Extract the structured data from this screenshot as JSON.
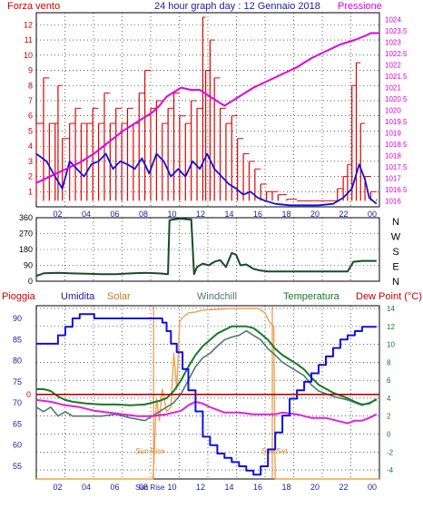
{
  "colors": {
    "wind": "#e00000",
    "gust_line": "#e00000",
    "wind_avg": "#1010e0",
    "pressure": "#e000e0",
    "direction": "#1a4a2a",
    "humidity": "#1010e0",
    "solar": "#f0a050",
    "windchill": "#507a72",
    "temperature": "#157a28",
    "dewpoint": "#e020e0",
    "rain": "#c00000",
    "sun_line": "#e08020",
    "axis_blue": "#2020a0",
    "grid": "#000000"
  },
  "chart_data": [
    {
      "type": "line",
      "title": "24 hour graph day : 12 Gennaio 2018",
      "left_label": "Forza vento",
      "right_label": "Pressione",
      "x_ticks": [
        "02",
        "04",
        "06",
        "08",
        "10",
        "12",
        "14",
        "16",
        "18",
        "20",
        "22",
        "00"
      ],
      "y_left_ticks": [
        "1",
        "2",
        "3",
        "4",
        "5",
        "6",
        "7",
        "8",
        "9",
        "10",
        "11",
        "12"
      ],
      "y_right_ticks": [
        "1016",
        "1016.5",
        "1017",
        "1017.5",
        "1018",
        "1018.5",
        "1019",
        "1019.5",
        "1020",
        "1020.5",
        "1021",
        "1021.5",
        "1022",
        "1022.5",
        "1023",
        "1023.5",
        "1024"
      ],
      "ylim_left": [
        0,
        12.8
      ],
      "ylim_right": [
        1015.75,
        1024.3
      ],
      "xlim": [
        0.5,
        24.2
      ],
      "series": [
        {
          "key": "pressure",
          "x": [
            0.5,
            1.5,
            2.5,
            3.5,
            4.5,
            5.5,
            6.5,
            7.5,
            8.5,
            9.0,
            9.5,
            10.5,
            11.2,
            11.8,
            12.5,
            13.5,
            14.5,
            15.5,
            16.5,
            17.5,
            18.5,
            19.5,
            20.5,
            21.5,
            22.5,
            23.3,
            23.6,
            24.2
          ],
          "y": [
            1016.8,
            1017.1,
            1017.4,
            1017.7,
            1018.1,
            1018.6,
            1019.1,
            1019.5,
            1019.9,
            1020.2,
            1020.6,
            1021.0,
            1020.9,
            1020.9,
            1020.6,
            1020.2,
            1020.6,
            1021.0,
            1021.3,
            1021.6,
            1021.9,
            1022.3,
            1022.6,
            1022.9,
            1023.1,
            1023.3,
            1023.4,
            1023.4
          ]
        },
        {
          "key": "wind_avg",
          "x": [
            0.5,
            1.2,
            1.8,
            2.3,
            2.8,
            3.3,
            3.8,
            4.3,
            4.8,
            5.3,
            5.8,
            6.3,
            6.8,
            7.3,
            7.8,
            8.3,
            8.8,
            9.3,
            9.8,
            10.3,
            10.8,
            11.3,
            11.8,
            12.3,
            12.8,
            13.3,
            13.8,
            14.3,
            14.8,
            15.3,
            15.8,
            16.3,
            17.0,
            18.0,
            19.0,
            20.0,
            21.0,
            21.7,
            22.3,
            22.8,
            23.2,
            23.5,
            24.0
          ],
          "y": [
            3.5,
            3.0,
            2.0,
            1.2,
            3.0,
            2.5,
            2.0,
            2.8,
            3.0,
            3.5,
            2.5,
            3.0,
            2.8,
            2.5,
            3.2,
            2.2,
            3.5,
            3.0,
            2.0,
            2.5,
            2.0,
            3.0,
            2.5,
            3.5,
            2.5,
            2.0,
            1.5,
            1.2,
            0.8,
            1.0,
            0.6,
            0.4,
            0.2,
            0.1,
            0.1,
            0.1,
            0.2,
            0.6,
            1.2,
            2.8,
            1.8,
            0.6,
            0.2
          ]
        },
        {
          "key": "wind",
          "x": [
            0.5,
            1.0,
            1.4,
            1.8,
            2.0,
            2.3,
            2.8,
            3.2,
            3.6,
            4.0,
            4.4,
            4.8,
            5.2,
            5.6,
            6.0,
            6.4,
            6.8,
            7.2,
            7.6,
            8.0,
            8.4,
            8.8,
            9.2,
            9.6,
            10.0,
            10.4,
            10.8,
            11.2,
            11.6,
            12.0,
            12.2,
            12.5,
            12.8,
            13.2,
            13.6,
            14.0,
            14.4,
            14.8,
            15.2,
            15.6,
            16.0,
            16.4,
            16.8,
            17.2,
            17.8,
            18.5,
            19.5,
            20.5,
            21.3,
            21.7,
            22.0,
            22.3,
            22.6,
            22.9,
            23.2,
            23.6,
            24.0
          ],
          "y": [
            5.5,
            8.5,
            5.5,
            5.5,
            8.0,
            4.5,
            5.5,
            6.5,
            5.5,
            5.5,
            6.5,
            5.5,
            7.5,
            5.5,
            6.5,
            5.5,
            6.5,
            5.5,
            7.5,
            9.0,
            6.5,
            7.0,
            5.5,
            6.5,
            7.5,
            6.0,
            5.5,
            7.0,
            6.5,
            12.5,
            9.0,
            11.0,
            8.5,
            6.5,
            5.5,
            6.0,
            4.5,
            3.5,
            3.0,
            2.5,
            1.5,
            1.0,
            1.0,
            0.8,
            0.5,
            0.4,
            0.4,
            0.4,
            1.2,
            2.0,
            2.8,
            8.0,
            9.5,
            5.5,
            2.0,
            1.0,
            0.5
          ]
        }
      ]
    },
    {
      "type": "line",
      "right_label": "N W S E N",
      "right_ticks": [
        "N",
        "W",
        "S",
        "E",
        "N"
      ],
      "y_left_ticks": [
        "0",
        "90",
        "180",
        "270",
        "360"
      ],
      "ylim": [
        0,
        360
      ],
      "xlim": [
        0.5,
        24.2
      ],
      "series": [
        {
          "key": "direction",
          "x": [
            0.5,
            1.0,
            2.0,
            3.0,
            4.0,
            5.0,
            6.0,
            7.0,
            8.0,
            9.0,
            9.6,
            9.7,
            10.0,
            10.5,
            11.0,
            11.2,
            11.4,
            11.6,
            12.0,
            12.4,
            12.8,
            13.2,
            13.6,
            14.0,
            14.3,
            14.6,
            15.0,
            15.5,
            16.0,
            16.5,
            17.0,
            18.0,
            19.0,
            20.0,
            21.0,
            22.0,
            22.4,
            23.0,
            24.0
          ],
          "y": [
            30,
            45,
            48,
            44,
            42,
            40,
            40,
            44,
            48,
            44,
            40,
            345,
            350,
            355,
            350,
            350,
            40,
            80,
            100,
            90,
            110,
            120,
            80,
            160,
            150,
            90,
            95,
            70,
            60,
            55,
            55,
            55,
            55,
            55,
            55,
            55,
            110,
            115,
            115
          ]
        }
      ]
    },
    {
      "type": "line",
      "labels": [
        "Pioggia",
        "Umidita",
        "Solar",
        "Windchill",
        "Temperatura",
        "Dew Point (°C)"
      ],
      "x_ticks": [
        "02",
        "04",
        "06",
        "08",
        "Sun Rise",
        "10",
        "12",
        "14",
        "16",
        "18",
        "20",
        "22",
        "00"
      ],
      "y_left_ticks": [
        "55",
        "60",
        "65",
        "70",
        "75",
        "80",
        "85",
        "90"
      ],
      "y_right_ticks": [
        "-4",
        "-2",
        "0",
        "2",
        "4",
        "6",
        "8",
        "10",
        "12",
        "14"
      ],
      "rain_label": "0",
      "ylim_left": [
        52,
        93
      ],
      "ylim_right": [
        -5,
        14.3
      ],
      "xlim": [
        0.5,
        24.2
      ],
      "sun_rise": 8.6,
      "sun_set": 16.8,
      "sun_rise_label": "Sun Rise",
      "sun_set_label": "Sun Set",
      "rain_value": 0,
      "series": [
        {
          "key": "humidity",
          "axis": "left",
          "x": [
            0.5,
            1.5,
            2.0,
            2.5,
            3.0,
            3.5,
            4.0,
            4.5,
            5.0,
            6.0,
            7.0,
            8.0,
            8.8,
            9.2,
            9.5,
            9.8,
            10.2,
            10.6,
            11.0,
            11.5,
            12.0,
            12.5,
            13.0,
            13.5,
            14.0,
            14.5,
            15.0,
            15.5,
            16.0,
            16.5,
            17.0,
            17.5,
            18.0,
            18.5,
            19.0,
            19.5,
            20.0,
            20.5,
            21.0,
            21.5,
            22.0,
            22.5,
            23.0,
            23.5,
            24.0
          ],
          "y": [
            84,
            84,
            86,
            88,
            90,
            91,
            91,
            90,
            90,
            90,
            90,
            90,
            90,
            89,
            87,
            84,
            82,
            78,
            73,
            68,
            62,
            60,
            58,
            57,
            56,
            55,
            54,
            53,
            55,
            59,
            63,
            67,
            71,
            73,
            75,
            77,
            79,
            81,
            83,
            85,
            86,
            87,
            88,
            88,
            88
          ],
          "step": true
        },
        {
          "key": "solar",
          "axis": "right",
          "x": [
            0.5,
            8.55,
            8.6,
            8.8,
            9.0,
            9.2,
            9.5,
            9.8,
            10.0,
            10.2,
            10.4,
            10.6,
            11.0,
            11.5,
            12.0,
            13.0,
            14.0,
            15.0,
            15.8,
            16.3,
            16.6,
            16.9,
            17.0,
            24.2
          ],
          "y": [
            -5,
            -5,
            -4,
            4,
            1.5,
            5,
            2.5,
            3.0,
            9.0,
            5.0,
            12.5,
            13.0,
            13.5,
            13.6,
            13.8,
            13.9,
            14.0,
            14.0,
            14.0,
            13.5,
            12.5,
            12.0,
            -5,
            -5
          ]
        },
        {
          "key": "windchill",
          "axis": "right",
          "x": [
            0.5,
            1.0,
            1.5,
            2.0,
            2.5,
            3.0,
            4.0,
            5.0,
            6.0,
            7.0,
            8.0,
            9.0,
            9.5,
            10.0,
            10.5,
            11.0,
            11.5,
            12.0,
            12.5,
            13.0,
            13.5,
            14.0,
            14.5,
            15.0,
            15.5,
            16.0,
            16.5,
            17.0,
            17.5,
            18.0,
            18.5,
            19.0,
            19.5,
            20.0,
            21.0,
            22.0,
            22.5,
            23.0,
            23.5,
            24.0
          ],
          "y": [
            3.0,
            2.5,
            3.0,
            2.0,
            2.5,
            2.0,
            2.0,
            2.0,
            2.2,
            1.8,
            1.5,
            2.5,
            3.0,
            3.5,
            4.5,
            6.0,
            7.5,
            8.5,
            9.0,
            9.8,
            10.5,
            10.8,
            11.0,
            11.5,
            11.0,
            10.5,
            9.5,
            8.8,
            8.0,
            7.5,
            7.0,
            6.5,
            5.5,
            4.8,
            4.2,
            3.8,
            3.5,
            3.2,
            3.5,
            3.8
          ]
        },
        {
          "key": "temperature",
          "axis": "right",
          "x": [
            0.5,
            1.0,
            1.5,
            2.0,
            2.5,
            3.0,
            4.0,
            5.0,
            6.0,
            7.0,
            8.0,
            9.0,
            9.5,
            10.0,
            10.5,
            11.0,
            11.5,
            12.0,
            12.5,
            13.0,
            13.5,
            14.0,
            14.5,
            15.0,
            15.5,
            16.0,
            16.5,
            17.0,
            17.5,
            18.0,
            18.5,
            19.0,
            19.5,
            20.0,
            21.0,
            22.0,
            22.5,
            23.0,
            23.5,
            24.0
          ],
          "y": [
            5.0,
            5.0,
            4.8,
            4.2,
            3.8,
            3.6,
            3.4,
            3.3,
            3.3,
            3.2,
            3.3,
            3.7,
            4.0,
            4.8,
            6.0,
            7.5,
            8.8,
            9.8,
            10.5,
            11.2,
            11.6,
            12.0,
            12.0,
            12.0,
            11.8,
            11.2,
            10.5,
            9.5,
            8.8,
            8.3,
            7.8,
            7.2,
            6.3,
            5.5,
            4.6,
            4.0,
            3.6,
            3.3,
            3.4,
            3.9
          ]
        },
        {
          "key": "dewpoint",
          "axis": "right",
          "x": [
            0.5,
            1.5,
            2.5,
            3.5,
            4.5,
            5.5,
            6.5,
            7.5,
            8.5,
            9.5,
            10.5,
            11.0,
            11.5,
            12.0,
            12.5,
            13.0,
            13.5,
            14.0,
            14.5,
            15.0,
            15.5,
            16.0,
            16.5,
            17.0,
            17.5,
            18.0,
            18.5,
            19.0,
            19.5,
            20.0,
            20.5,
            21.0,
            21.5,
            22.0,
            22.5,
            23.0,
            23.5,
            24.0
          ],
          "y": [
            3.8,
            3.6,
            3.2,
            3.0,
            2.6,
            2.4,
            2.2,
            2.0,
            2.0,
            2.2,
            2.6,
            3.2,
            3.6,
            3.4,
            3.0,
            2.7,
            2.4,
            2.4,
            2.4,
            2.3,
            2.2,
            2.2,
            2.2,
            2.2,
            2.4,
            2.3,
            2.2,
            2.0,
            1.8,
            1.8,
            1.8,
            1.6,
            1.4,
            1.2,
            1.5,
            1.5,
            1.8,
            2.2
          ]
        }
      ]
    }
  ]
}
